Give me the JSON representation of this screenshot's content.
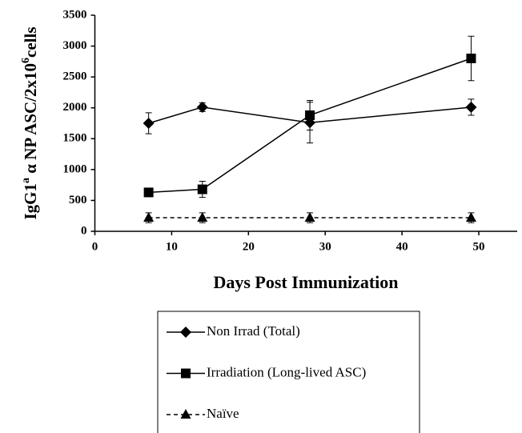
{
  "chart_data": {
    "type": "line",
    "xlabel": "Days Post Immunization",
    "ylabel": [
      "IgG1",
      "a",
      " α NP ASC/2x10",
      "6",
      "cells"
    ],
    "x": [
      7,
      14,
      28,
      49
    ],
    "series": [
      {
        "name": "Non Irrad  (Total)",
        "color": "#000000",
        "marker": "diamond",
        "linestyle": "solid",
        "values": [
          1750,
          2010,
          1760,
          2010
        ],
        "errors": [
          170,
          70,
          330,
          130
        ]
      },
      {
        "name": "Irradiation  (Long-lived ASC)",
        "color": "#000000",
        "marker": "square",
        "linestyle": "solid",
        "values": [
          630,
          680,
          1880,
          2800
        ],
        "errors": [
          70,
          130,
          240,
          360
        ]
      },
      {
        "name": "Naïve",
        "color": "#000000",
        "marker": "triangle",
        "linestyle": "dashed",
        "values": [
          220,
          220,
          220,
          220
        ],
        "errors": [
          80,
          80,
          80,
          80
        ]
      }
    ],
    "xlim": [
      0,
      55
    ],
    "xticks": [
      0,
      10,
      20,
      30,
      40,
      50
    ],
    "ylim": [
      0,
      3500
    ],
    "yticks": [
      0,
      500,
      1000,
      1500,
      2000,
      2500,
      3000,
      3500
    ],
    "grid": false
  }
}
